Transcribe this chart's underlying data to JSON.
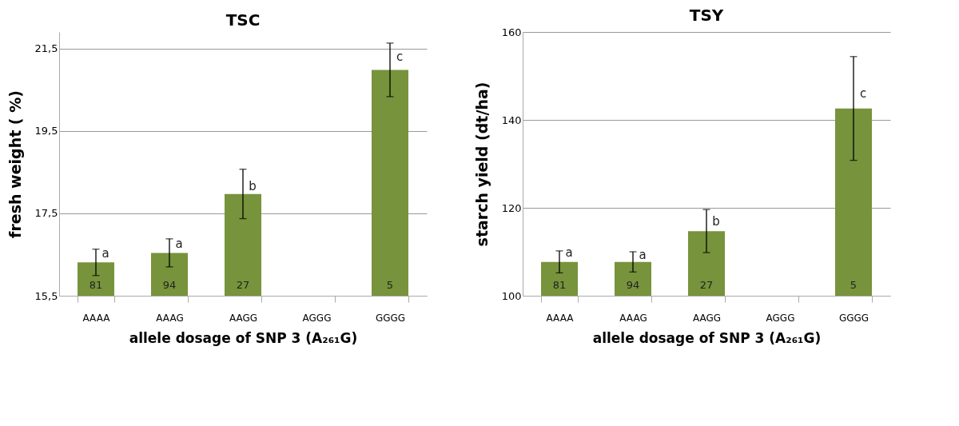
{
  "chart_data": [
    {
      "type": "bar",
      "title": "TSC",
      "xlabel": "allele dosage of SNP 3 (A₂₆₁G)",
      "ylabel": "fresh weight ( %)",
      "categories": [
        "AAAA",
        "AAAG",
        "AAGG",
        "AGGG",
        "GGGG"
      ],
      "values": [
        16.31,
        16.54,
        17.97,
        null,
        20.98
      ],
      "errors": [
        0.32,
        0.34,
        0.6,
        null,
        0.65
      ],
      "color": "#77933c",
      "ylim": [
        15.5,
        21.9
      ],
      "yticks": [
        {
          "value": 15.5,
          "label": "15,5"
        },
        {
          "value": 17.5,
          "label": "17,5"
        },
        {
          "value": 19.5,
          "label": "19,5"
        },
        {
          "value": 21.5,
          "label": "21,5"
        }
      ],
      "grid": "y",
      "annotations": [
        {
          "text": "a",
          "x": "AAAA",
          "y": 16.52
        },
        {
          "text": "a",
          "x": "AAAG",
          "y": 16.76
        },
        {
          "text": "b",
          "x": "AAGG",
          "y": 18.16
        },
        {
          "text": "c",
          "x": "GGGG",
          "y": 21.3
        },
        "81",
        "94",
        "27",
        "5"
      ]
    },
    {
      "type": "bar",
      "title": "TSY",
      "xlabel": "allele dosage of SNP 3 (A₂₆₁G)",
      "ylabel": "starch yield (dt/ha)",
      "categories": [
        "AAAA",
        "AAAG",
        "AAGG",
        "AGGG",
        "GGGG"
      ],
      "values": [
        107.7,
        107.7,
        114.7,
        null,
        142.6
      ],
      "errors": [
        2.5,
        2.3,
        4.9,
        null,
        11.8
      ],
      "color": "#77933c",
      "ylim": [
        100,
        160
      ],
      "yticks": [
        100,
        120,
        140,
        160
      ],
      "grid": "y",
      "annotations": [
        {
          "text": "a",
          "x": "AAAA",
          "y": 109.8
        },
        {
          "text": "a",
          "x": "AAAG",
          "y": 109.2
        },
        {
          "text": "b",
          "x": "AAGG",
          "y": 116.9
        },
        {
          "text": "c",
          "x": "GGGG",
          "y": 146.0
        },
        "81",
        "94",
        "27",
        "5"
      ]
    }
  ]
}
